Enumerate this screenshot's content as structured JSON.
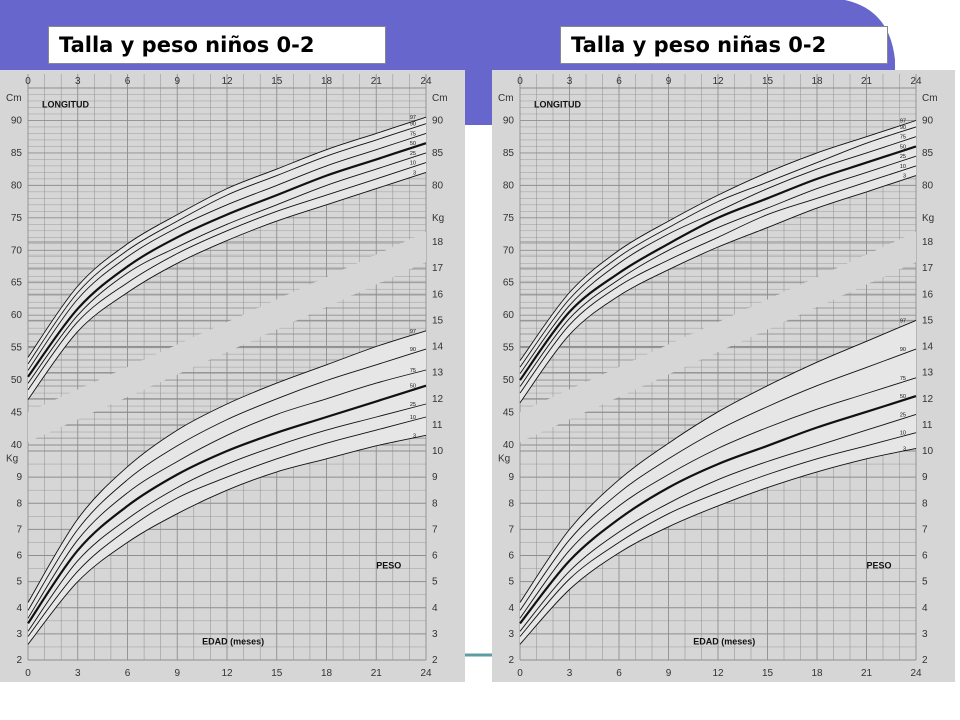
{
  "slide": {
    "title_left": "Talla y peso niños 0-2",
    "title_right": "Talla y peso niñas 0-2",
    "colors": {
      "header_blue": "#6666cc",
      "accent_teal": "#5f9ea0",
      "chart_paper": "#d6d6d6",
      "band_fill": "#e6e6e6",
      "grid": "#8e8e8e"
    }
  },
  "chart_data": [
    {
      "type": "line",
      "id": "boys",
      "length_label": "LONGITUD",
      "weight_label": "PESO",
      "xlabel": "EDAD (meses)",
      "x_ticks": [
        0,
        3,
        6,
        9,
        12,
        15,
        18,
        21,
        24
      ],
      "length_axis": {
        "unit": "Cm",
        "left_ticks": [
          40,
          45,
          50,
          55,
          60,
          65,
          70,
          75,
          80,
          85,
          90
        ],
        "right_ticks": [
          80,
          85,
          90
        ],
        "ylim": [
          40,
          95
        ]
      },
      "weight_axis": {
        "unit": "Kg",
        "left_ticks": [
          2,
          3,
          4,
          5,
          6,
          7,
          8,
          9
        ],
        "right_ticks": [
          2,
          3,
          4,
          5,
          6,
          7,
          8,
          9,
          10,
          11,
          12,
          13,
          14,
          15,
          16,
          17,
          18
        ],
        "ylim": [
          2,
          18
        ]
      },
      "length_series": [
        {
          "name": "97",
          "x": [
            0,
            3,
            6,
            9,
            12,
            15,
            18,
            21,
            24
          ],
          "values": [
            53.5,
            64.5,
            71.0,
            75.5,
            79.5,
            82.5,
            85.5,
            88.0,
            90.5
          ]
        },
        {
          "name": "90",
          "x": [
            0,
            3,
            6,
            9,
            12,
            15,
            18,
            21,
            24
          ],
          "values": [
            52.5,
            63.5,
            70.0,
            74.5,
            78.5,
            81.5,
            84.5,
            87.0,
            89.5
          ]
        },
        {
          "name": "75",
          "x": [
            0,
            3,
            6,
            9,
            12,
            15,
            18,
            21,
            24
          ],
          "values": [
            51.5,
            62.5,
            69.0,
            73.5,
            77.0,
            80.0,
            83.0,
            85.5,
            88.0
          ]
        },
        {
          "name": "50",
          "x": [
            0,
            3,
            6,
            9,
            12,
            15,
            18,
            21,
            24
          ],
          "values": [
            50.5,
            61.0,
            67.5,
            72.0,
            75.5,
            78.5,
            81.5,
            84.0,
            86.5
          ]
        },
        {
          "name": "25",
          "x": [
            0,
            3,
            6,
            9,
            12,
            15,
            18,
            21,
            24
          ],
          "values": [
            49.5,
            60.0,
            66.5,
            70.5,
            74.0,
            77.0,
            80.0,
            82.5,
            85.0
          ]
        },
        {
          "name": "10",
          "x": [
            0,
            3,
            6,
            9,
            12,
            15,
            18,
            21,
            24
          ],
          "values": [
            48.5,
            59.0,
            65.0,
            69.5,
            73.0,
            76.0,
            78.5,
            81.0,
            83.5
          ]
        },
        {
          "name": "3",
          "x": [
            0,
            3,
            6,
            9,
            12,
            15,
            18,
            21,
            24
          ],
          "values": [
            47.0,
            57.5,
            63.5,
            68.0,
            71.5,
            74.5,
            77.0,
            79.5,
            82.0
          ]
        }
      ],
      "weight_series": [
        {
          "name": "97",
          "x": [
            0,
            3,
            6,
            9,
            12,
            15,
            18,
            21,
            24
          ],
          "values": [
            4.2,
            7.4,
            9.4,
            10.8,
            11.8,
            12.6,
            13.3,
            14.0,
            14.6
          ]
        },
        {
          "name": "90",
          "x": [
            0,
            3,
            6,
            9,
            12,
            15,
            18,
            21,
            24
          ],
          "values": [
            3.9,
            7.0,
            8.9,
            10.2,
            11.2,
            12.0,
            12.7,
            13.3,
            13.9
          ]
        },
        {
          "name": "75",
          "x": [
            0,
            3,
            6,
            9,
            12,
            15,
            18,
            21,
            24
          ],
          "values": [
            3.6,
            6.6,
            8.4,
            9.6,
            10.6,
            11.4,
            12.0,
            12.6,
            13.1
          ]
        },
        {
          "name": "50",
          "x": [
            0,
            3,
            6,
            9,
            12,
            15,
            18,
            21,
            24
          ],
          "values": [
            3.4,
            6.2,
            7.9,
            9.1,
            10.0,
            10.7,
            11.3,
            11.9,
            12.5
          ]
        },
        {
          "name": "25",
          "x": [
            0,
            3,
            6,
            9,
            12,
            15,
            18,
            21,
            24
          ],
          "values": [
            3.1,
            5.8,
            7.4,
            8.6,
            9.5,
            10.2,
            10.8,
            11.3,
            11.8
          ]
        },
        {
          "name": "10",
          "x": [
            0,
            3,
            6,
            9,
            12,
            15,
            18,
            21,
            24
          ],
          "values": [
            2.9,
            5.4,
            7.0,
            8.2,
            9.0,
            9.7,
            10.3,
            10.8,
            11.3
          ]
        },
        {
          "name": "3",
          "x": [
            0,
            3,
            6,
            9,
            12,
            15,
            18,
            21,
            24
          ],
          "values": [
            2.6,
            5.0,
            6.5,
            7.6,
            8.5,
            9.2,
            9.7,
            10.2,
            10.6
          ]
        }
      ]
    },
    {
      "type": "line",
      "id": "girls",
      "length_label": "LONGITUD",
      "weight_label": "PESO",
      "xlabel": "EDAD (meses)",
      "x_ticks": [
        0,
        3,
        6,
        9,
        12,
        15,
        18,
        21,
        24
      ],
      "length_axis": {
        "unit": "Cm",
        "left_ticks": [
          40,
          45,
          50,
          55,
          60,
          65,
          70,
          75,
          80,
          85,
          90
        ],
        "right_ticks": [
          80,
          85,
          90
        ],
        "ylim": [
          40,
          95
        ]
      },
      "weight_axis": {
        "unit": "Kg",
        "left_ticks": [
          2,
          3,
          4,
          5,
          6,
          7,
          8,
          9
        ],
        "right_ticks": [
          2,
          3,
          4,
          5,
          6,
          7,
          8,
          9,
          10,
          11,
          12,
          13,
          14,
          15,
          16,
          17,
          18
        ],
        "ylim": [
          2,
          18
        ]
      },
      "length_series": [
        {
          "name": "97",
          "x": [
            0,
            3,
            6,
            9,
            12,
            15,
            18,
            21,
            24
          ],
          "values": [
            53.0,
            63.5,
            70.0,
            74.5,
            78.5,
            82.0,
            85.0,
            87.5,
            90.0
          ]
        },
        {
          "name": "90",
          "x": [
            0,
            3,
            6,
            9,
            12,
            15,
            18,
            21,
            24
          ],
          "values": [
            52.0,
            62.5,
            69.0,
            73.5,
            77.5,
            80.5,
            83.5,
            86.5,
            89.0
          ]
        },
        {
          "name": "75",
          "x": [
            0,
            3,
            6,
            9,
            12,
            15,
            18,
            21,
            24
          ],
          "values": [
            51.0,
            61.5,
            68.0,
            72.5,
            76.0,
            79.5,
            82.5,
            85.0,
            87.5
          ]
        },
        {
          "name": "50",
          "x": [
            0,
            3,
            6,
            9,
            12,
            15,
            18,
            21,
            24
          ],
          "values": [
            50.0,
            60.5,
            66.5,
            71.0,
            75.0,
            78.0,
            81.0,
            83.5,
            86.0
          ]
        },
        {
          "name": "25",
          "x": [
            0,
            3,
            6,
            9,
            12,
            15,
            18,
            21,
            24
          ],
          "values": [
            49.0,
            59.5,
            65.5,
            70.0,
            73.5,
            76.5,
            79.5,
            82.0,
            84.5
          ]
        },
        {
          "name": "10",
          "x": [
            0,
            3,
            6,
            9,
            12,
            15,
            18,
            21,
            24
          ],
          "values": [
            48.0,
            58.5,
            64.5,
            68.5,
            72.0,
            75.5,
            78.0,
            80.5,
            83.0
          ]
        },
        {
          "name": "3",
          "x": [
            0,
            3,
            6,
            9,
            12,
            15,
            18,
            21,
            24
          ],
          "values": [
            46.5,
            57.0,
            63.0,
            67.0,
            70.5,
            73.5,
            76.5,
            79.0,
            81.5
          ]
        }
      ],
      "weight_series": [
        {
          "name": "97",
          "x": [
            0,
            3,
            6,
            9,
            12,
            15,
            18,
            21,
            24
          ],
          "values": [
            4.2,
            7.0,
            8.9,
            10.3,
            11.5,
            12.5,
            13.4,
            14.2,
            15.0
          ]
        },
        {
          "name": "90",
          "x": [
            0,
            3,
            6,
            9,
            12,
            15,
            18,
            21,
            24
          ],
          "values": [
            3.9,
            6.6,
            8.4,
            9.7,
            10.8,
            11.7,
            12.5,
            13.2,
            13.9
          ]
        },
        {
          "name": "75",
          "x": [
            0,
            3,
            6,
            9,
            12,
            15,
            18,
            21,
            24
          ],
          "values": [
            3.6,
            6.2,
            7.9,
            9.1,
            10.1,
            10.9,
            11.6,
            12.2,
            12.8
          ]
        },
        {
          "name": "50",
          "x": [
            0,
            3,
            6,
            9,
            12,
            15,
            18,
            21,
            24
          ],
          "values": [
            3.4,
            5.8,
            7.4,
            8.6,
            9.5,
            10.2,
            10.9,
            11.5,
            12.1
          ]
        },
        {
          "name": "25",
          "x": [
            0,
            3,
            6,
            9,
            12,
            15,
            18,
            21,
            24
          ],
          "values": [
            3.1,
            5.4,
            6.9,
            8.0,
            8.9,
            9.6,
            10.2,
            10.8,
            11.4
          ]
        },
        {
          "name": "10",
          "x": [
            0,
            3,
            6,
            9,
            12,
            15,
            18,
            21,
            24
          ],
          "values": [
            2.9,
            5.1,
            6.5,
            7.6,
            8.4,
            9.1,
            9.7,
            10.2,
            10.7
          ]
        },
        {
          "name": "3",
          "x": [
            0,
            3,
            6,
            9,
            12,
            15,
            18,
            21,
            24
          ],
          "values": [
            2.6,
            4.7,
            6.1,
            7.1,
            7.9,
            8.6,
            9.2,
            9.7,
            10.1
          ]
        }
      ]
    }
  ]
}
